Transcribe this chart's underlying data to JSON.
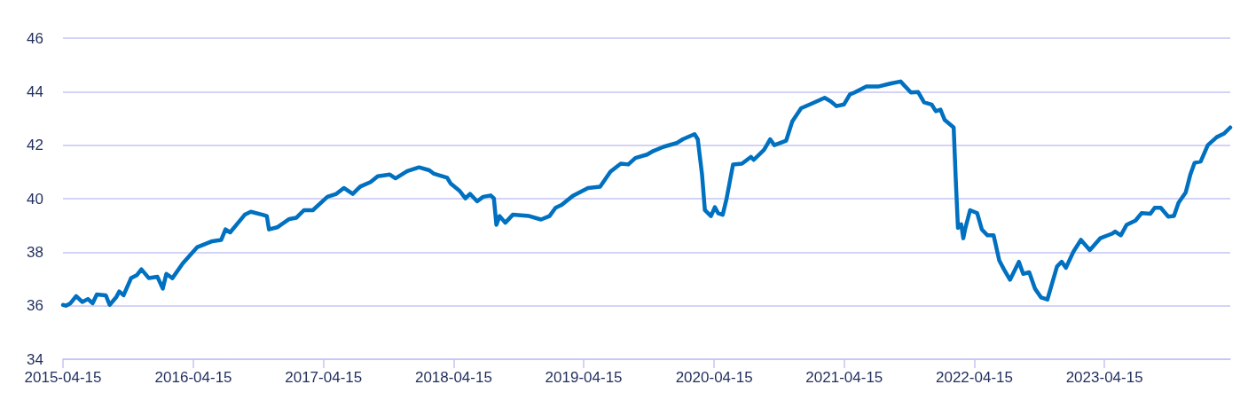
{
  "chart_data": {
    "type": "line",
    "xlim": [
      "2015-04-15",
      "2024-04-02"
    ],
    "xticks": [
      "2015-04-15",
      "2016-04-15",
      "2017-04-15",
      "2018-04-15",
      "2019-04-15",
      "2020-04-15",
      "2021-04-15",
      "2022-04-15",
      "2023-04-15"
    ],
    "ylim": [
      34,
      46
    ],
    "yticks": [
      34,
      36,
      38,
      40,
      42,
      44,
      46
    ],
    "grid": "y",
    "marker": "none",
    "line_style": "solid",
    "series": [
      {
        "color": "#0070c0",
        "x": [
          "2015-04-15",
          "2015-04-23",
          "2015-05-06",
          "2015-05-22",
          "2015-06-08",
          "2015-06-24",
          "2015-07-07",
          "2015-07-19",
          "2015-08-13",
          "2015-08-24",
          "2015-09-11",
          "2015-09-20",
          "2015-10-02",
          "2015-10-23",
          "2015-11-08",
          "2015-11-21",
          "2015-12-12",
          "2016-01-05",
          "2016-01-20",
          "2016-01-30",
          "2016-02-16",
          "2016-03-16",
          "2016-04-26",
          "2016-06-07",
          "2016-07-02",
          "2016-07-14",
          "2016-07-27",
          "2016-09-06",
          "2016-09-23",
          "2016-10-26",
          "2016-11-07",
          "2016-11-13",
          "2016-12-06",
          "2017-01-09",
          "2017-01-29",
          "2017-02-19",
          "2017-03-16",
          "2017-04-26",
          "2017-05-21",
          "2017-06-11",
          "2017-07-06",
          "2017-07-27",
          "2017-08-25",
          "2017-09-14",
          "2017-10-18",
          "2017-11-03",
          "2017-12-06",
          "2018-01-08",
          "2018-02-06",
          "2018-02-19",
          "2018-03-28",
          "2018-04-07",
          "2018-05-02",
          "2018-05-18",
          "2018-05-31",
          "2018-06-20",
          "2018-07-07",
          "2018-07-28",
          "2018-08-06",
          "2018-08-13",
          "2018-08-22",
          "2018-09-07",
          "2018-09-28",
          "2018-11-13",
          "2018-12-16",
          "2019-01-09",
          "2019-01-26",
          "2019-02-12",
          "2019-03-17",
          "2019-04-27",
          "2019-05-31",
          "2019-06-29",
          "2019-07-28",
          "2019-08-18",
          "2019-09-07",
          "2019-10-10",
          "2019-10-27",
          "2019-11-25",
          "2020-01-01",
          "2020-01-18",
          "2020-02-20",
          "2020-02-29",
          "2020-03-12",
          "2020-03-20",
          "2020-04-06",
          "2020-04-17",
          "2020-04-26",
          "2020-05-09",
          "2020-05-20",
          "2020-06-07",
          "2020-07-02",
          "2020-07-27",
          "2020-08-04",
          "2020-09-02",
          "2020-09-19",
          "2020-10-01",
          "2020-11-03",
          "2020-11-20",
          "2020-12-15",
          "2021-01-17",
          "2021-02-19",
          "2021-03-08",
          "2021-03-24",
          "2021-04-14",
          "2021-05-01",
          "2021-05-14",
          "2021-06-16",
          "2021-07-19",
          "2021-08-22",
          "2021-09-20",
          "2021-10-19",
          "2021-11-08",
          "2021-11-25",
          "2021-12-16",
          "2021-12-28",
          "2022-01-10",
          "2022-01-22",
          "2022-02-16",
          "2022-02-22",
          "2022-02-28",
          "2022-03-09",
          "2022-03-15",
          "2022-03-21",
          "2022-04-03",
          "2022-04-23",
          "2022-05-06",
          "2022-05-22",
          "2022-06-08",
          "2022-06-24",
          "2022-07-07",
          "2022-07-24",
          "2022-08-18",
          "2022-08-30",
          "2022-09-16",
          "2022-10-02",
          "2022-10-19",
          "2022-11-06",
          "2022-11-21",
          "2022-12-03",
          "2022-12-16",
          "2022-12-28",
          "2023-01-18",
          "2023-02-08",
          "2023-03-05",
          "2023-04-03",
          "2023-05-06",
          "2023-05-15",
          "2023-05-31",
          "2023-06-16",
          "2023-07-11",
          "2023-07-28",
          "2023-08-22",
          "2023-09-03",
          "2023-09-20",
          "2023-10-11",
          "2023-10-27",
          "2023-11-09",
          "2023-11-29",
          "2023-12-12",
          "2023-12-24",
          "2024-01-10",
          "2024-01-30",
          "2024-02-24",
          "2024-03-16",
          "2024-04-02"
        ],
        "values": [
          36.03,
          36.0,
          36.09,
          36.36,
          36.14,
          36.25,
          36.09,
          36.42,
          36.39,
          36.03,
          36.31,
          36.53,
          36.39,
          37.03,
          37.14,
          37.36,
          37.03,
          37.08,
          36.64,
          37.19,
          37.03,
          37.58,
          38.19,
          38.41,
          38.46,
          38.85,
          38.74,
          39.4,
          39.51,
          39.4,
          39.35,
          38.85,
          38.93,
          39.24,
          39.29,
          39.57,
          39.57,
          40.07,
          40.18,
          40.4,
          40.18,
          40.45,
          40.62,
          40.84,
          40.9,
          40.76,
          41.03,
          41.17,
          41.06,
          40.93,
          40.78,
          40.56,
          40.29,
          40.01,
          40.18,
          39.9,
          40.07,
          40.12,
          40.01,
          39.02,
          39.35,
          39.1,
          39.4,
          39.35,
          39.22,
          39.35,
          39.66,
          39.77,
          40.12,
          40.4,
          40.45,
          41.01,
          41.31,
          41.28,
          41.52,
          41.65,
          41.78,
          41.94,
          42.08,
          42.22,
          42.41,
          42.22,
          40.9,
          39.57,
          39.35,
          39.68,
          39.46,
          39.4,
          40.01,
          41.28,
          41.31,
          41.56,
          41.45,
          41.83,
          42.22,
          42.0,
          42.17,
          42.88,
          43.38,
          43.57,
          43.77,
          43.64,
          43.46,
          43.52,
          43.9,
          43.97,
          44.19,
          44.19,
          44.3,
          44.38,
          43.97,
          43.99,
          43.6,
          43.52,
          43.27,
          43.33,
          42.94,
          42.66,
          40.67,
          38.91,
          39.04,
          38.52,
          38.91,
          39.57,
          39.46,
          38.85,
          38.63,
          38.63,
          37.69,
          37.36,
          36.97,
          37.64,
          37.19,
          37.25,
          36.64,
          36.31,
          36.23,
          36.92,
          37.47,
          37.64,
          37.42,
          38.02,
          38.46,
          38.08,
          38.52,
          38.69,
          38.77,
          38.63,
          39.02,
          39.18,
          39.46,
          39.44,
          39.66,
          39.66,
          39.33,
          39.35,
          39.85,
          40.23,
          40.9,
          41.34,
          41.39,
          42.0,
          42.3,
          42.44,
          42.66
        ]
      }
    ]
  }
}
